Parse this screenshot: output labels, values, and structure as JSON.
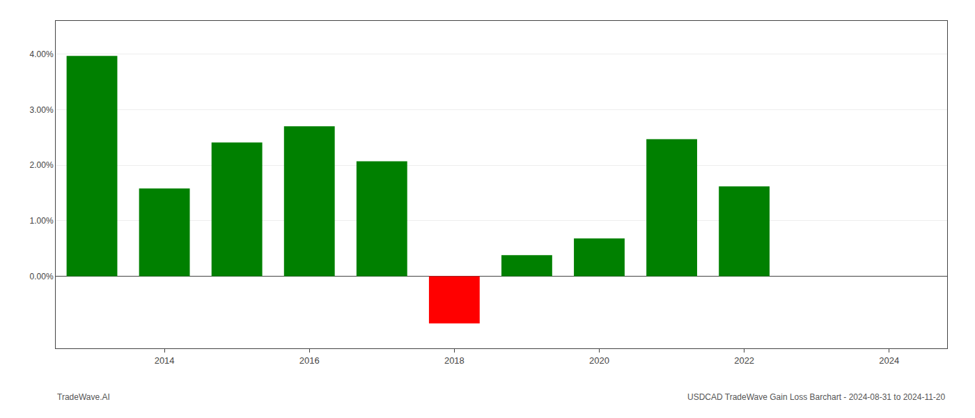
{
  "chart_data": {
    "type": "bar",
    "x": [
      2013,
      2014,
      2015,
      2016,
      2017,
      2018,
      2019,
      2020,
      2021,
      2022,
      2023
    ],
    "values": [
      0.0397,
      0.0158,
      0.0241,
      0.027,
      0.0207,
      -0.0085,
      0.0038,
      0.0068,
      0.0247,
      0.0162,
      0.0
    ],
    "colors": [
      "#008000",
      "#008000",
      "#008000",
      "#008000",
      "#008000",
      "#ff0000",
      "#008000",
      "#008000",
      "#008000",
      "#008000",
      "#008000"
    ],
    "xlim": [
      2012.5,
      2024.8
    ],
    "xticks": [
      2014,
      2016,
      2018,
      2020,
      2022,
      2024
    ],
    "ylim": [
      -0.013,
      0.046
    ],
    "yticks": [
      {
        "value": 0.0,
        "label": "0.00%"
      },
      {
        "value": 0.01,
        "label": "1.00%"
      },
      {
        "value": 0.02,
        "label": "2.00%"
      },
      {
        "value": 0.03,
        "label": "3.00%"
      },
      {
        "value": 0.04,
        "label": "4.00%"
      }
    ],
    "grid": true,
    "annotations": [
      "TradeWave.AI",
      "USDCAD TradeWave Gain Loss Barchart - 2024-08-31 to 2024-11-20"
    ]
  }
}
